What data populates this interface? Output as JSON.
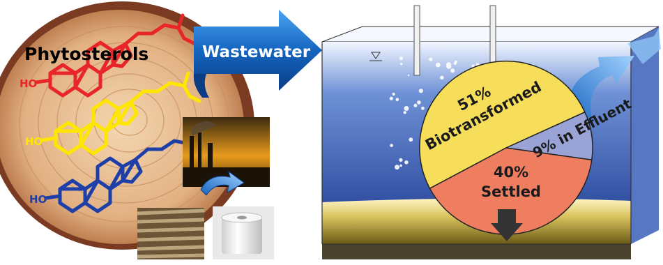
{
  "title": "Phytosterols",
  "arrow_label": "Wastewater",
  "molecules": [
    {
      "label": "HO",
      "color": "#e8262a"
    },
    {
      "label": "HO",
      "color": "#ffe600"
    },
    {
      "label": "HO",
      "color": "#1f3fa8"
    }
  ],
  "chart_data": {
    "type": "pie",
    "slices": [
      {
        "label_value": "51%",
        "label_text": "Biotransformed",
        "value": 51,
        "color": "#f7de5a"
      },
      {
        "label_value": "",
        "label_text": "9% in Effluent",
        "value": 9,
        "color": "#9aa3d6"
      },
      {
        "label_value": "40%",
        "label_text": "Settled",
        "value": 40,
        "color": "#ef7e61"
      }
    ]
  },
  "colors": {
    "arrow": "#1565c0",
    "water_top": "#eef4ff",
    "water_bottom": "#1a3a8c",
    "sludge": "#c8b24a",
    "wood": "#d9a878",
    "bark": "#7a3b22"
  }
}
